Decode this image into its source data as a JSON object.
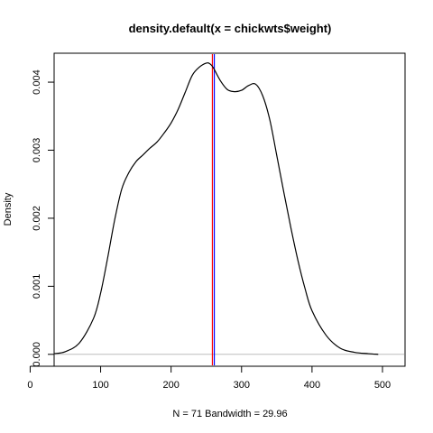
{
  "chart_data": {
    "type": "line",
    "title": "density.default(x = chickwts$weight)",
    "xlabel": "N = 71   Bandwidth = 29.96",
    "ylabel": "Density",
    "xlim": [
      34,
      532
    ],
    "ylim": [
      -0.000175,
      0.004425
    ],
    "x_ticks": [
      "0",
      "100",
      "200",
      "300",
      "400",
      "500"
    ],
    "x_tick_values": [
      0,
      100,
      200,
      300,
      400,
      500
    ],
    "y_ticks": [
      "0.000",
      "0.001",
      "0.002",
      "0.003",
      "0.004"
    ],
    "y_tick_values": [
      0.0,
      0.001,
      0.002,
      0.003,
      0.004
    ],
    "grid": false,
    "reference_lines": [
      {
        "orientation": "horizontal",
        "value": 0,
        "color": "#bebebe"
      },
      {
        "orientation": "vertical",
        "value": 258.6,
        "color": "#ff0000"
      },
      {
        "orientation": "vertical",
        "value": 261.3,
        "color": "#0000ff"
      }
    ],
    "series": [
      {
        "color": "#000000",
        "x": [
          34,
          50,
          70,
          90,
          100,
          110,
          120,
          130,
          140,
          150,
          160,
          170,
          180,
          190,
          200,
          210,
          220,
          230,
          240,
          250,
          255,
          260,
          270,
          280,
          290,
          300,
          310,
          320,
          330,
          340,
          350,
          360,
          370,
          380,
          390,
          400,
          420,
          440,
          460,
          480,
          494
        ],
        "y": [
          1e-05,
          4e-05,
          0.00017,
          0.00053,
          0.0009,
          0.00142,
          0.00198,
          0.00243,
          0.00267,
          0.00283,
          0.00293,
          0.00303,
          0.00312,
          0.00325,
          0.0034,
          0.0036,
          0.00385,
          0.0041,
          0.00422,
          0.00428,
          0.00427,
          0.00421,
          0.00402,
          0.00389,
          0.00386,
          0.00388,
          0.00395,
          0.00397,
          0.0038,
          0.00345,
          0.00292,
          0.00238,
          0.00186,
          0.00138,
          0.00097,
          0.00064,
          0.00028,
          9e-05,
          3e-05,
          1e-05,
          0.0
        ]
      }
    ]
  }
}
